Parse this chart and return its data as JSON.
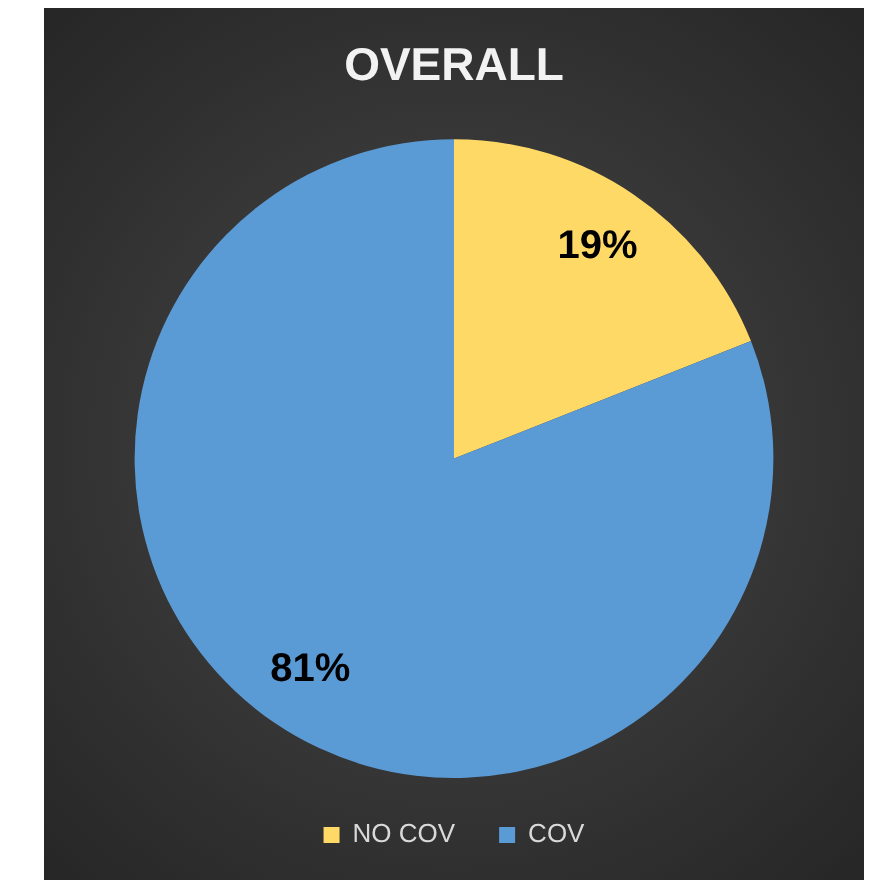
{
  "chart_data": {
    "type": "pie",
    "title": "OVERALL",
    "categories": [
      "NO COV",
      "COV"
    ],
    "values": [
      19,
      81
    ],
    "colors": [
      "#ffd966",
      "#5b9bd5"
    ],
    "value_labels": [
      "19%",
      "81%"
    ],
    "legend": "bottom"
  }
}
